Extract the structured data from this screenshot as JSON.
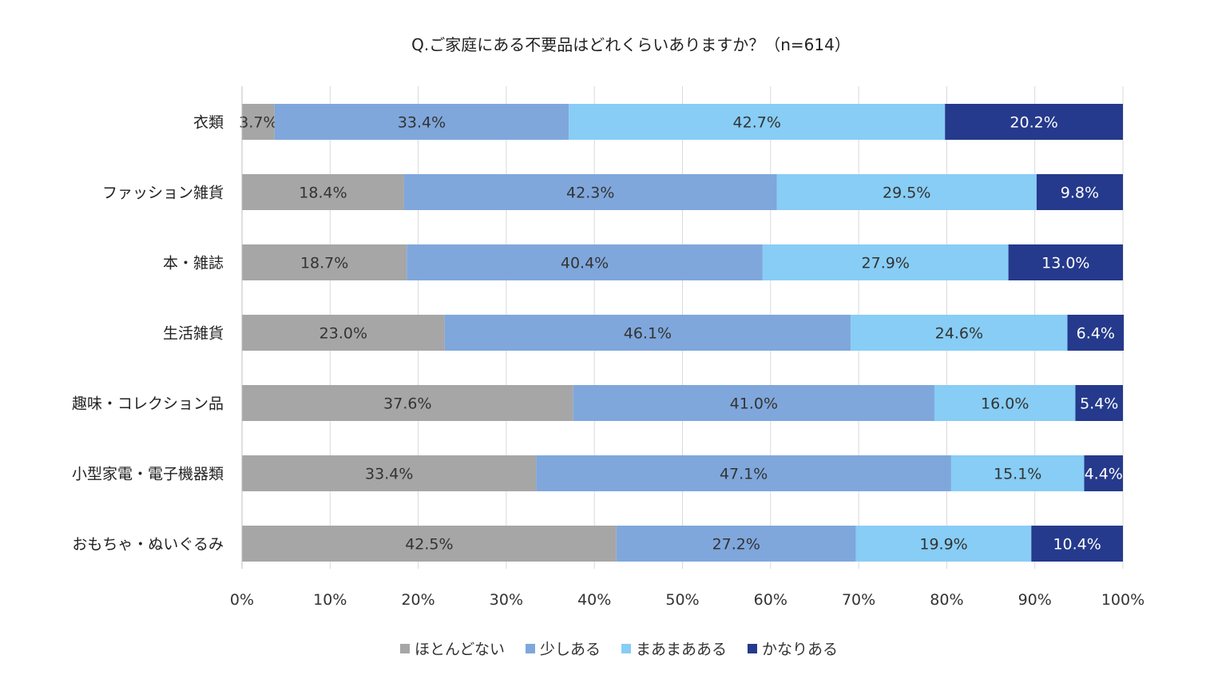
{
  "chart_data": {
    "type": "bar",
    "orientation": "horizontal",
    "stacked": "percent",
    "title": "Q.ご家庭にある不要品はどれくらいありますか？（n=614）",
    "categories": [
      "衣類",
      "ファッション雑貨",
      "本・雑誌",
      "生活雑貨",
      "趣味・コレクション品",
      "小型家電・電子機器類",
      "おもちゃ・ぬいぐるみ"
    ],
    "series": [
      {
        "name": "ほとんどない",
        "color": "#a6a6a6",
        "label_color": "#333333",
        "values": [
          3.7,
          18.4,
          18.7,
          23.0,
          37.6,
          33.4,
          42.5
        ]
      },
      {
        "name": "少しある",
        "color": "#7fa7dc",
        "label_color": "#333333",
        "values": [
          33.4,
          42.3,
          40.4,
          46.1,
          41.0,
          47.1,
          27.2
        ]
      },
      {
        "name": "まあまあある",
        "color": "#87cdf5",
        "label_color": "#333333",
        "values": [
          42.7,
          29.5,
          27.9,
          24.6,
          16.0,
          15.1,
          19.9
        ]
      },
      {
        "name": "かなりある",
        "color": "#253a8c",
        "label_color": "#ffffff",
        "values": [
          20.2,
          9.8,
          13.0,
          6.4,
          5.4,
          4.4,
          10.4
        ]
      }
    ],
    "xlim": [
      0,
      100
    ],
    "xticks": [
      "0%",
      "10%",
      "20%",
      "30%",
      "40%",
      "50%",
      "60%",
      "70%",
      "80%",
      "90%",
      "100%"
    ],
    "grid": true,
    "legend": "bottom"
  }
}
